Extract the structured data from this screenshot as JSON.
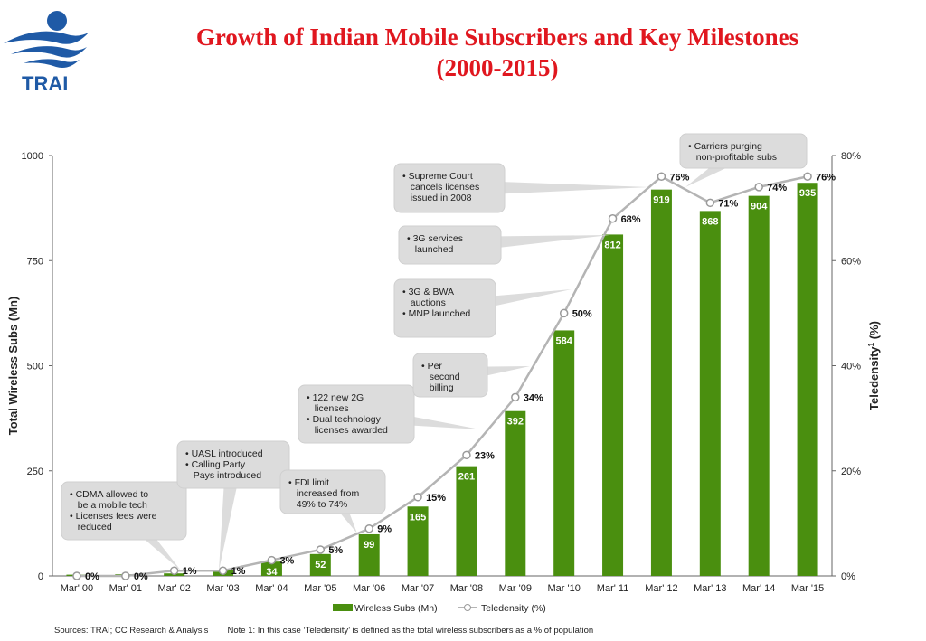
{
  "header": {
    "logo_text": "TRAI",
    "title_line1": "Growth of Indian Mobile Subscribers and Key Milestones",
    "title_line2": "(2000-2015)"
  },
  "colors": {
    "title": "#e0171f",
    "bar": "#4a8f0f",
    "line": "#b4b4b4",
    "callout": "#dcdcdc",
    "logo": "#1f5aa6"
  },
  "chart_data": {
    "type": "bar",
    "categories": [
      "Mar' 00",
      "Mar' 01",
      "Mar' 02",
      "Mar '03",
      "Mar' 04",
      "Mar '05",
      "Mar '06",
      "Mar '07",
      "Mar '08",
      "Mar '09",
      "Mar '10",
      "Mar' 11",
      "Mar' 12",
      "Mar' 13",
      "Mar' 14",
      "Mar '15"
    ],
    "series": [
      {
        "name": "Wireless Subs (Mn)",
        "type": "bar",
        "axis": "left",
        "values": [
          3,
          4,
          6,
          13,
          34,
          52,
          99,
          165,
          261,
          392,
          584,
          812,
          919,
          868,
          904,
          935
        ],
        "labels": [
          "",
          "",
          "",
          "",
          "34",
          "52",
          "99",
          "165",
          "261",
          "392",
          "584",
          "812",
          "919",
          "868",
          "904",
          "935"
        ]
      },
      {
        "name": "Teledensity (%)",
        "type": "line",
        "axis": "right",
        "values": [
          0,
          0,
          1,
          1,
          3,
          5,
          9,
          15,
          23,
          34,
          50,
          68,
          76,
          71,
          74,
          76
        ],
        "labels": [
          "0%",
          "0%",
          "1%",
          "1%",
          "3%",
          "5%",
          "9%",
          "15%",
          "23%",
          "34%",
          "50%",
          "68%",
          "76%",
          "71%",
          "74%",
          "76%"
        ]
      }
    ],
    "ylabel": "Total Wireless Subs (Mn)",
    "ylabel_right_main": "Teledensity",
    "ylabel_right_sup": "1",
    "ylabel_right_suffix": " (%)",
    "ylim": [
      0,
      1000
    ],
    "yticks": [
      "0",
      "250",
      "500",
      "750",
      "1000"
    ],
    "ylim_right": [
      0,
      80
    ],
    "yticks_right": [
      "0%",
      "20%",
      "40%",
      "60%",
      "80%"
    ],
    "legend": {
      "position": "bottom-center",
      "bar_label": "Wireless Subs (Mn)",
      "line_label": "Teledensity (%)"
    },
    "annotations": [
      {
        "lines": [
          "• CDMA allowed to",
          "   be a mobile tech",
          "• Licenses fees were",
          "   reduced"
        ],
        "points_to": "Mar' 02"
      },
      {
        "lines": [
          "• UASL introduced",
          "• Calling Party",
          "   Pays introduced"
        ],
        "points_to": "Mar '03"
      },
      {
        "lines": [
          "• FDI limit",
          "   increased from",
          "   49% to 74%"
        ],
        "points_to": "Mar '06"
      },
      {
        "lines": [
          "• 122 new 2G",
          "   licenses",
          "• Dual technology",
          "   licenses awarded"
        ],
        "points_to": "Mar '08"
      },
      {
        "lines": [
          "• Per",
          "   second",
          "   billing"
        ],
        "points_to": "Mar '09"
      },
      {
        "lines": [
          "• 3G & BWA",
          "   auctions",
          "• MNP launched"
        ],
        "points_to": "Mar '10"
      },
      {
        "lines": [
          "• 3G services",
          "   launched"
        ],
        "points_to": "Mar' 11"
      },
      {
        "lines": [
          "• Supreme Court",
          "   cancels licenses",
          "   issued in 2008"
        ],
        "points_to": "Mar' 12"
      },
      {
        "lines": [
          "• Carriers purging",
          "   non-profitable subs"
        ],
        "points_to": "Mar' 12"
      }
    ]
  },
  "footer": {
    "sources": "Sources: TRAI; CC Research & Analysis",
    "note": "Note 1: In this case ‘Teledensity’ is defined as the total wireless subscribers as a % of population"
  }
}
